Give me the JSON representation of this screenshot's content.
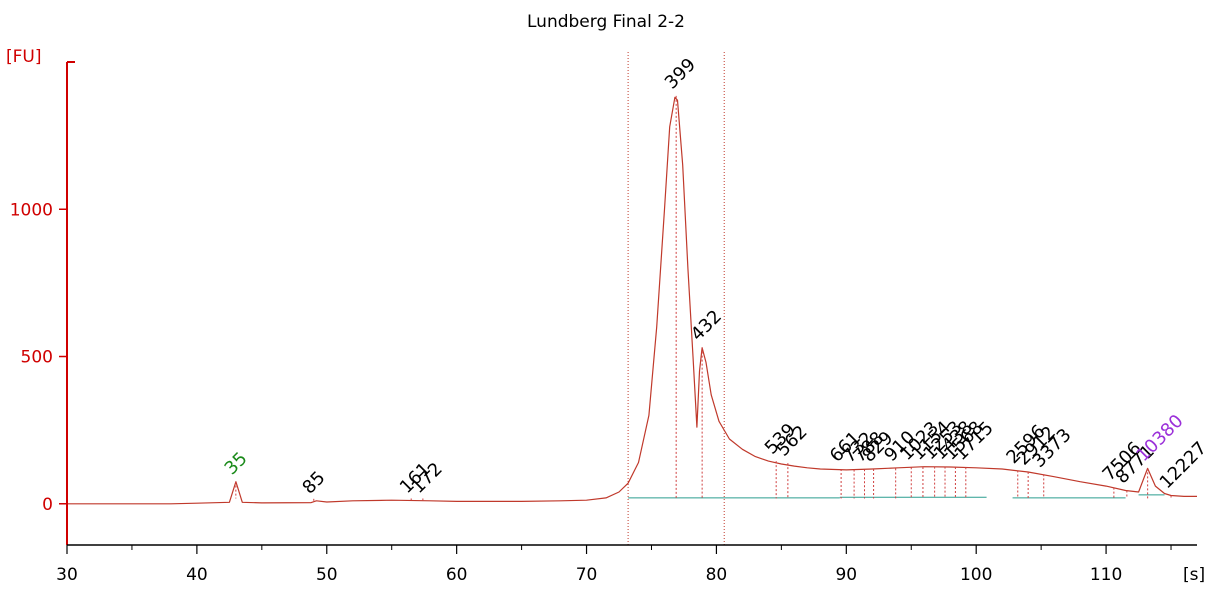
{
  "chart_data": {
    "type": "line",
    "title": "Lundberg Final 2-2",
    "ylabel": "[FU]",
    "xlabel": "[s]",
    "xlim": [
      30,
      117
    ],
    "ylim": [
      -140,
      1500
    ],
    "xticks": [
      30,
      40,
      50,
      60,
      70,
      80,
      90,
      100,
      110
    ],
    "yticks": [
      0,
      500,
      1000
    ],
    "grid": false,
    "colors": {
      "axis": "#d00000",
      "trace": "#c0392b",
      "marker_green": "#1a8a1a",
      "marker_purple": "#9b30d9",
      "baseline": "#2a9d8f"
    },
    "series": [
      {
        "x": [
          30,
          38,
          40,
          42.5,
          43.0,
          43.5,
          45,
          48.8,
          49.2,
          50,
          52,
          55,
          58,
          60,
          65,
          68,
          70,
          71.5,
          72.5,
          73.2,
          74,
          74.8,
          75.4,
          76.0,
          76.4,
          76.8,
          77.0,
          77.4,
          77.8,
          78.2,
          78.5,
          78.7,
          78.9,
          79.2,
          79.6,
          80.2,
          81,
          82,
          83,
          84,
          85,
          86,
          87,
          88,
          90,
          92,
          94,
          96,
          98,
          100,
          102,
          104,
          106,
          108,
          110,
          111.5,
          112.5,
          113.2,
          113.8,
          114.5,
          115,
          116,
          117
        ],
        "values": [
          0,
          0,
          2,
          5,
          75,
          5,
          3,
          4,
          10,
          6,
          10,
          12,
          10,
          8,
          8,
          10,
          12,
          20,
          40,
          70,
          140,
          300,
          600,
          1000,
          1280,
          1380,
          1370,
          1150,
          800,
          500,
          260,
          450,
          530,
          480,
          370,
          280,
          220,
          185,
          160,
          145,
          135,
          128,
          122,
          118,
          115,
          118,
          122,
          126,
          125,
          122,
          118,
          108,
          92,
          75,
          60,
          45,
          40,
          120,
          60,
          35,
          28,
          25,
          25
        ]
      }
    ],
    "vertical_markers": [
      73.2,
      80.6
    ],
    "peaks": [
      {
        "label": "35",
        "x": 43.0,
        "y": 75,
        "color": "green"
      },
      {
        "label": "85",
        "x": 49.0,
        "y": 10,
        "color": "black"
      },
      {
        "label": "161",
        "x": 56.5,
        "y": 12,
        "color": "black"
      },
      {
        "label": "172",
        "x": 57.4,
        "y": 12,
        "color": "black"
      },
      {
        "label": "399",
        "x": 76.9,
        "y": 1385,
        "color": "black"
      },
      {
        "label": "432",
        "x": 78.9,
        "y": 530,
        "color": "black"
      },
      {
        "label": "539",
        "x": 84.6,
        "y": 145,
        "color": "black"
      },
      {
        "label": "562",
        "x": 85.5,
        "y": 138,
        "color": "black"
      },
      {
        "label": "661",
        "x": 89.6,
        "y": 118,
        "color": "black"
      },
      {
        "label": "732",
        "x": 90.6,
        "y": 116,
        "color": "black"
      },
      {
        "label": "788",
        "x": 91.4,
        "y": 117,
        "color": "black"
      },
      {
        "label": "829",
        "x": 92.1,
        "y": 118,
        "color": "black"
      },
      {
        "label": "910",
        "x": 93.8,
        "y": 120,
        "color": "black"
      },
      {
        "label": "1023",
        "x": 95.0,
        "y": 124,
        "color": "black"
      },
      {
        "label": "1154",
        "x": 95.9,
        "y": 125,
        "color": "black"
      },
      {
        "label": "1253",
        "x": 96.8,
        "y": 126,
        "color": "black"
      },
      {
        "label": "1438",
        "x": 97.6,
        "y": 126,
        "color": "black"
      },
      {
        "label": "1568",
        "x": 98.4,
        "y": 125,
        "color": "black"
      },
      {
        "label": "1715",
        "x": 99.2,
        "y": 124,
        "color": "black"
      },
      {
        "label": "2596",
        "x": 103.2,
        "y": 113,
        "color": "black"
      },
      {
        "label": "2912",
        "x": 104.0,
        "y": 108,
        "color": "black"
      },
      {
        "label": "3373",
        "x": 105.2,
        "y": 100,
        "color": "black"
      },
      {
        "label": "7506",
        "x": 110.6,
        "y": 55,
        "color": "black"
      },
      {
        "label": "8771",
        "x": 111.6,
        "y": 45,
        "color": "black"
      },
      {
        "label": "10380",
        "x": 113.2,
        "y": 120,
        "color": "purple"
      },
      {
        "label": "12227",
        "x": 115.0,
        "y": 28,
        "color": "black"
      }
    ],
    "baseline_segments": [
      {
        "x0": 73.2,
        "x1": 89.5,
        "y": 20
      },
      {
        "x0": 89.5,
        "x1": 100.8,
        "y": 22
      },
      {
        "x0": 102.8,
        "x1": 111.5,
        "y": 20
      },
      {
        "x0": 112.5,
        "x1": 114.5,
        "y": 30
      }
    ]
  }
}
